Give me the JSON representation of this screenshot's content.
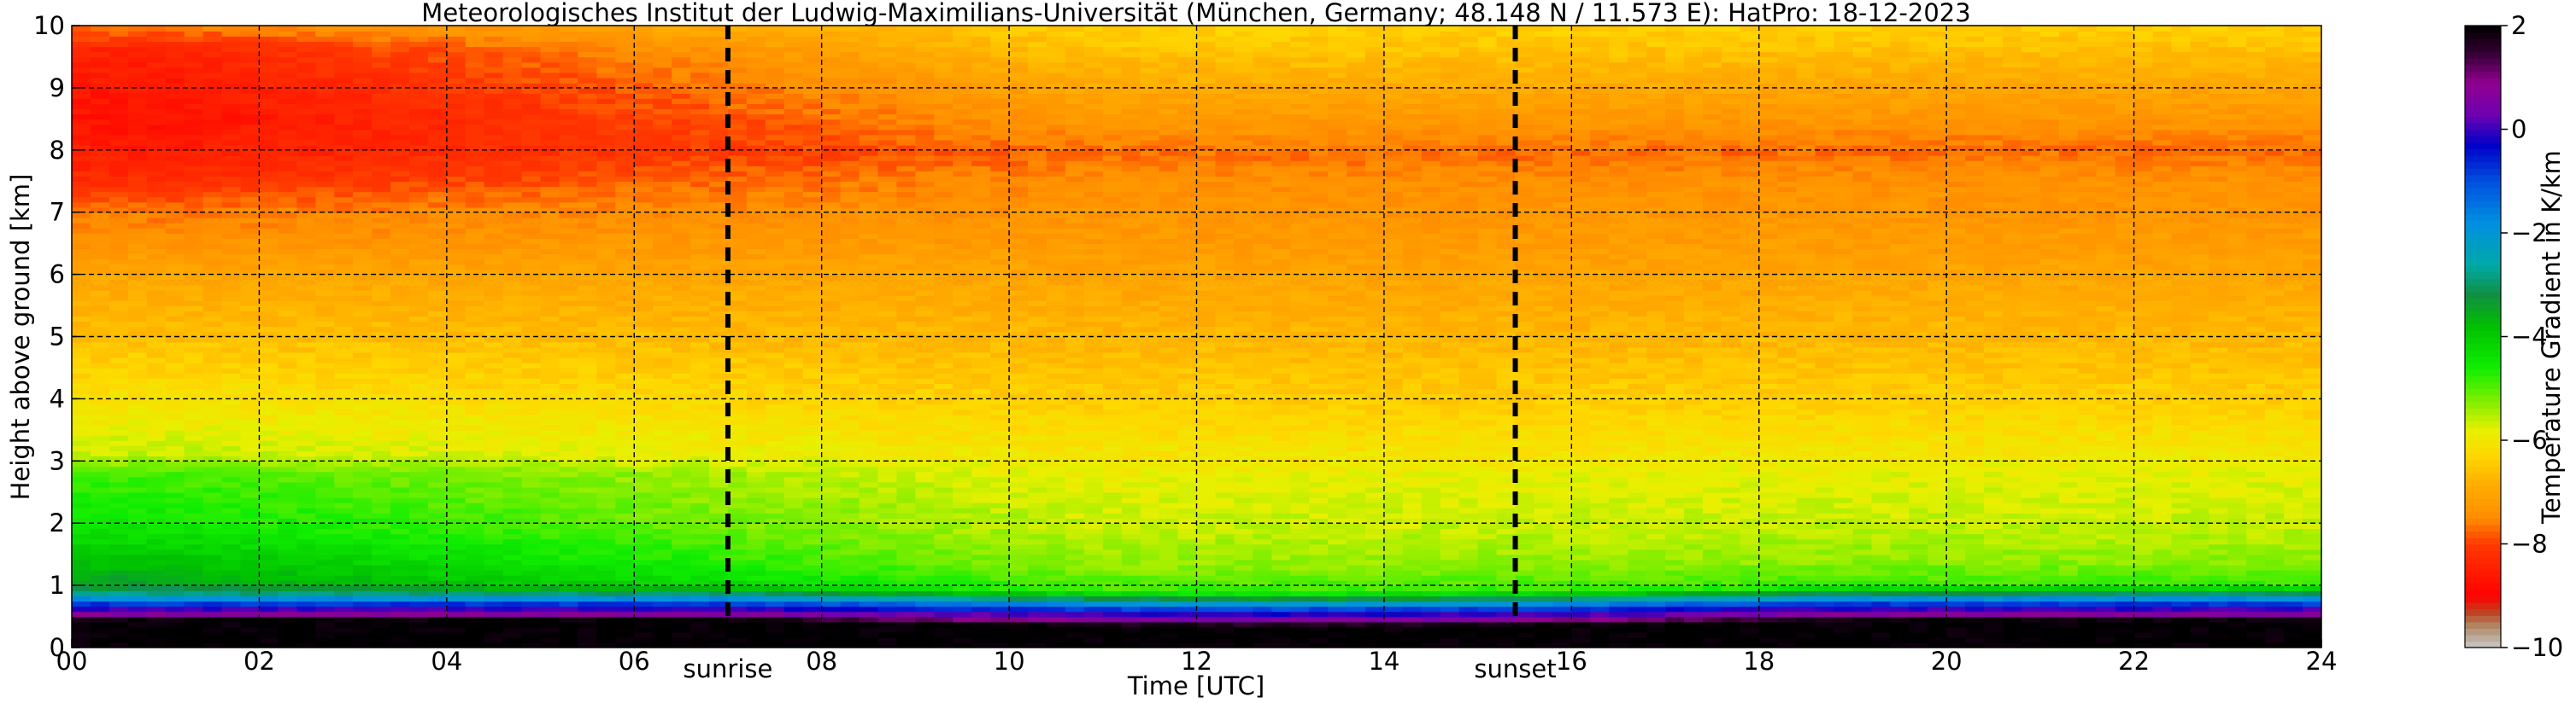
{
  "chart_data": {
    "type": "heatmap",
    "title": "Meteorologisches Institut der Ludwig-Maximilians-Universität (München, Germany; 48.148 N / 11.573 E):    HatPro: 18-12-2023",
    "xlabel": "Time [UTC]",
    "ylabel": "Height above ground [km]",
    "xlim": [
      0,
      24
    ],
    "ylim": [
      0,
      10
    ],
    "x_ticks": [
      "00",
      "02",
      "04",
      "06",
      "08",
      "10",
      "12",
      "14",
      "16",
      "18",
      "20",
      "22",
      "24"
    ],
    "y_ticks": [
      "0",
      "1",
      "2",
      "3",
      "4",
      "5",
      "6",
      "7",
      "8",
      "9",
      "10"
    ],
    "grid": true,
    "markers": [
      {
        "label": "sunrise",
        "time": 7.0
      },
      {
        "label": "sunset",
        "time": 15.4
      }
    ],
    "colorbar": {
      "label": "Temperature Gradient in K/km",
      "range": [
        -10,
        2
      ],
      "ticks": [
        "−10",
        "−8",
        "−6",
        "−4",
        "−2",
        "0",
        "2"
      ],
      "colors": [
        {
          "value": -10.0,
          "color": "#c8c8c8"
        },
        {
          "value": -9.6,
          "color": "#b08c6a"
        },
        {
          "value": -9.3,
          "color": "#c04020"
        },
        {
          "value": -9.0,
          "color": "#ff0000"
        },
        {
          "value": -8.0,
          "color": "#ff3a00"
        },
        {
          "value": -7.5,
          "color": "#ff8c00"
        },
        {
          "value": -6.8,
          "color": "#ffb000"
        },
        {
          "value": -6.3,
          "color": "#ffd700"
        },
        {
          "value": -5.8,
          "color": "#e8f000"
        },
        {
          "value": -5.2,
          "color": "#7aee00"
        },
        {
          "value": -4.6,
          "color": "#10ee00"
        },
        {
          "value": -3.8,
          "color": "#00c000"
        },
        {
          "value": -3.2,
          "color": "#109040"
        },
        {
          "value": -2.6,
          "color": "#00a8a8"
        },
        {
          "value": -1.8,
          "color": "#0090e0"
        },
        {
          "value": -1.0,
          "color": "#0050e0"
        },
        {
          "value": -0.3,
          "color": "#0000c8"
        },
        {
          "value": 0.3,
          "color": "#7000b0"
        },
        {
          "value": 0.9,
          "color": "#900090"
        },
        {
          "value": 1.5,
          "color": "#300030"
        },
        {
          "value": 2.0,
          "color": "#000000"
        }
      ]
    },
    "profile": {
      "heights_km": [
        0.0,
        0.45,
        0.55,
        0.65,
        0.75,
        0.85,
        1.0,
        1.4,
        2.0,
        2.8,
        3.1,
        4.0,
        5.0,
        6.0,
        6.6,
        7.0,
        7.6,
        8.0,
        8.5,
        9.0,
        9.6,
        10.0
      ],
      "early_K_per_km": [
        2.0,
        2.0,
        0.6,
        -0.2,
        -1.2,
        -2.7,
        -3.4,
        -3.9,
        -4.5,
        -4.9,
        -5.6,
        -6.1,
        -6.6,
        -7.0,
        -7.4,
        -7.6,
        -8.3,
        -8.5,
        -8.7,
        -8.6,
        -8.4,
        -7.6
      ],
      "late_K_per_km": [
        2.0,
        2.0,
        0.6,
        -0.2,
        -1.2,
        -2.7,
        -4.8,
        -5.3,
        -5.6,
        -5.8,
        -6.0,
        -6.4,
        -6.7,
        -7.0,
        -7.2,
        -7.3,
        -7.4,
        -7.7,
        -7.3,
        -7.0,
        -6.6,
        -6.4
      ]
    }
  }
}
